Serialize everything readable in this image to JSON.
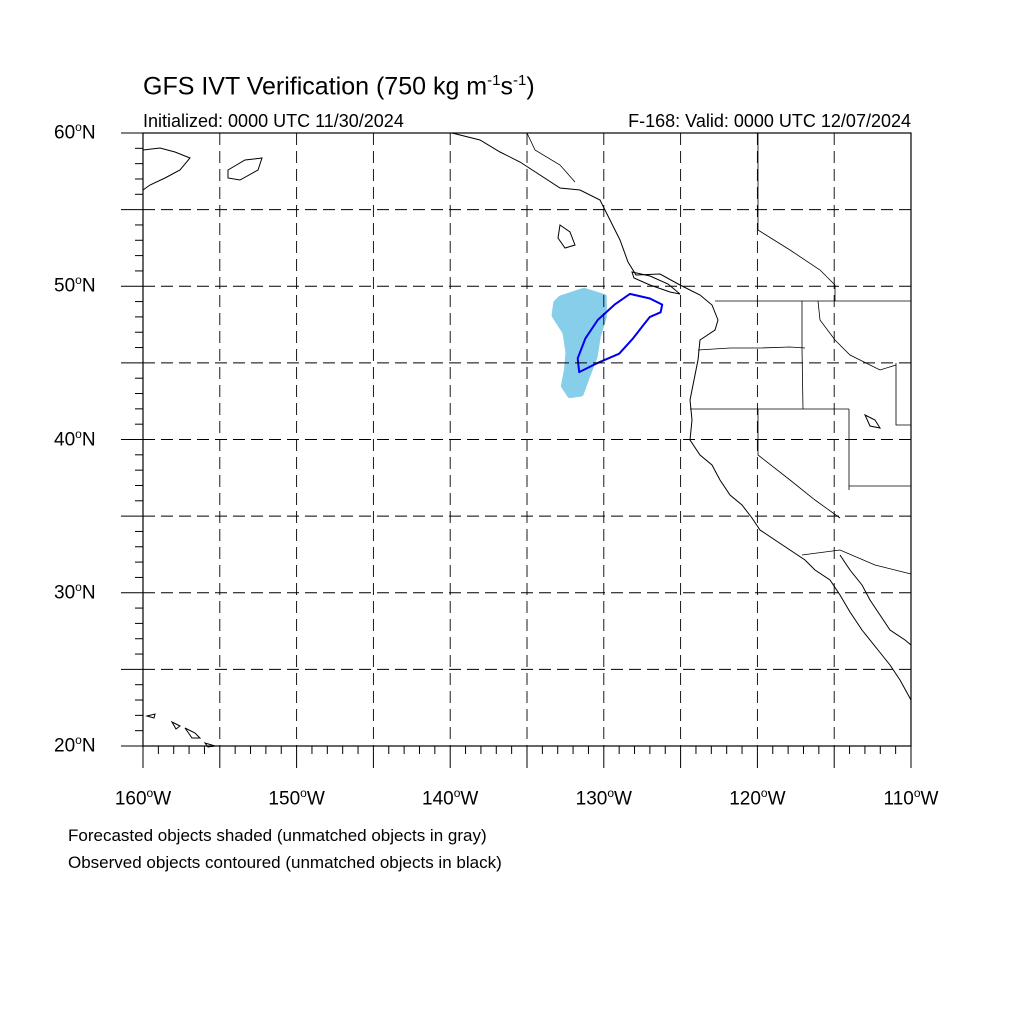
{
  "title": {
    "main": "GFS IVT Verification (750 kg m",
    "sup1": "-1",
    "mid": "s",
    "sup2": "-1",
    "end": ")"
  },
  "initialized": "Initialized: 0000 UTC 11/30/2024",
  "valid": "F-168: Valid: 0000 UTC 12/07/2024",
  "map": {
    "lon_range": [
      -160,
      -110
    ],
    "lat_range": [
      20,
      60
    ],
    "grid": "dashed",
    "lat_labels": [
      {
        "lat": 60,
        "text": "60",
        "deg": "o",
        "hemi": "N"
      },
      {
        "lat": 50,
        "text": "50",
        "deg": "o",
        "hemi": "N"
      },
      {
        "lat": 40,
        "text": "40",
        "deg": "o",
        "hemi": "N"
      },
      {
        "lat": 30,
        "text": "30",
        "deg": "o",
        "hemi": "N"
      },
      {
        "lat": 20,
        "text": "20",
        "deg": "o",
        "hemi": "N"
      }
    ],
    "lon_labels": [
      {
        "lon": -160,
        "text": "160",
        "deg": "o",
        "hemi": "W"
      },
      {
        "lon": -150,
        "text": "150",
        "deg": "o",
        "hemi": "W"
      },
      {
        "lon": -140,
        "text": "140",
        "deg": "o",
        "hemi": "W"
      },
      {
        "lon": -130,
        "text": "130",
        "deg": "o",
        "hemi": "W"
      },
      {
        "lon": -120,
        "text": "120",
        "deg": "o",
        "hemi": "W"
      },
      {
        "lon": -110,
        "text": "110",
        "deg": "o",
        "hemi": "W"
      }
    ],
    "forecast_color": "#87ceeb",
    "observed_color": "#0000ee",
    "forecast_object": [
      [
        -132.8,
        49.2
      ],
      [
        -131.3,
        49.7
      ],
      [
        -130.0,
        49.3
      ],
      [
        -130.0,
        48.0
      ],
      [
        -130.4,
        46.7
      ],
      [
        -130.6,
        45.4
      ],
      [
        -131.1,
        44.1
      ],
      [
        -131.5,
        43.0
      ],
      [
        -132.2,
        42.9
      ],
      [
        -132.6,
        43.5
      ],
      [
        -132.4,
        44.5
      ],
      [
        -132.3,
        45.7
      ],
      [
        -132.5,
        47.0
      ],
      [
        -133.2,
        48.1
      ],
      [
        -133.1,
        48.9
      ]
    ],
    "observed_object": [
      [
        -128.3,
        49.5
      ],
      [
        -127.0,
        49.2
      ],
      [
        -126.2,
        48.8
      ],
      [
        -126.3,
        48.3
      ],
      [
        -127.0,
        48.0
      ],
      [
        -127.4,
        47.5
      ],
      [
        -128.1,
        46.6
      ],
      [
        -129.0,
        45.6
      ],
      [
        -130.4,
        45.0
      ],
      [
        -131.6,
        44.4
      ],
      [
        -131.7,
        45.3
      ],
      [
        -131.2,
        46.6
      ],
      [
        -130.4,
        47.8
      ],
      [
        -129.3,
        48.8
      ]
    ]
  },
  "notes": [
    "Forecasted objects shaded (unmatched objects in gray)",
    "Observed objects contoured (unmatched objects in black)"
  ]
}
